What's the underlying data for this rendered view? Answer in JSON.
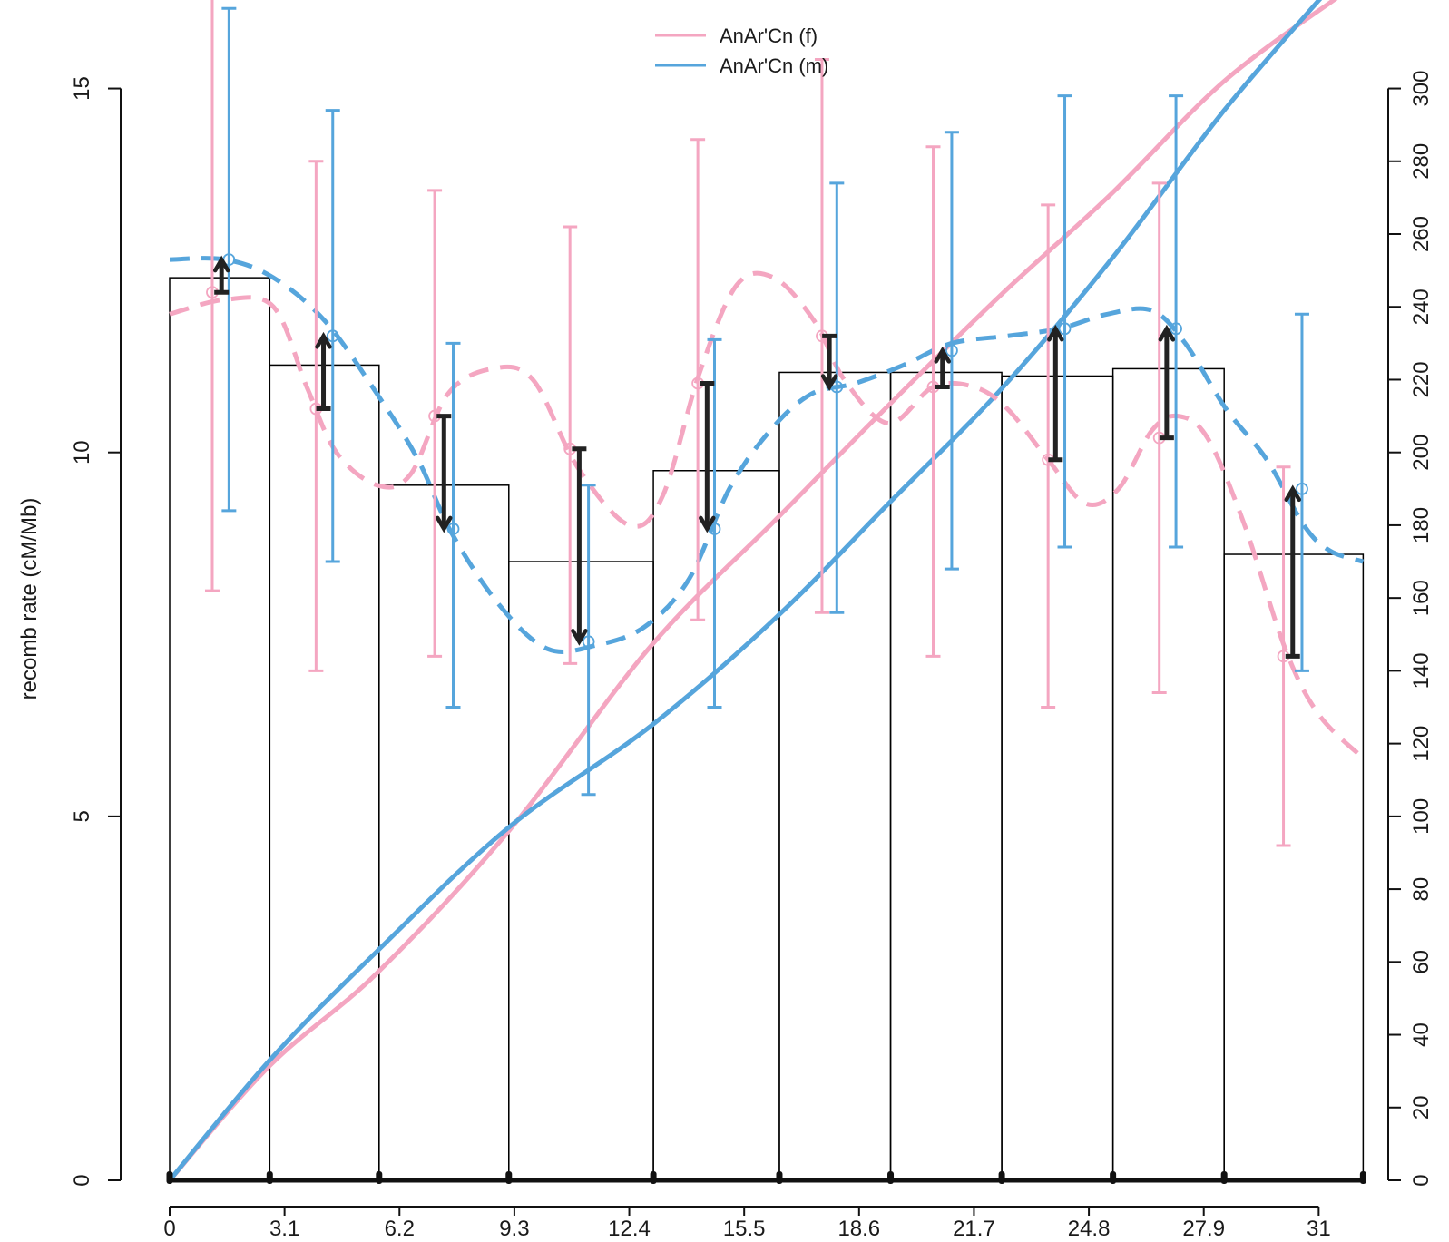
{
  "chart_data": {
    "type": "bar",
    "title": "",
    "xlabel": "",
    "ylabel": "recomb rate (cM/Mb)",
    "y2label": "",
    "xlim": [
      0,
      32.2
    ],
    "ylim": [
      0,
      15
    ],
    "y2lim": [
      0,
      300
    ],
    "x_ticks": [
      "0",
      "3.1",
      "6.2",
      "9.3",
      "12.4",
      "15.5",
      "18.6",
      "21.7",
      "24.8",
      "27.9",
      "31"
    ],
    "y_ticks": [
      "0",
      "5",
      "10",
      "15"
    ],
    "y2_ticks": [
      "0",
      "20",
      "40",
      "60",
      "80",
      "100",
      "120",
      "140",
      "160",
      "180",
      "200",
      "220",
      "240",
      "260",
      "280",
      "300"
    ],
    "colors": {
      "female": "#F4A6C1",
      "male": "#56A5DC",
      "arrow": "#222222",
      "bar_outline": "#000000"
    },
    "legend": {
      "position": "top-center",
      "entries": [
        {
          "label": "AnAr'Cn (f)",
          "color": "#F4A6C1"
        },
        {
          "label": "AnAr'Cn (m)",
          "color": "#56A5DC"
        }
      ]
    },
    "bins": [
      {
        "start": 0.0,
        "end": 2.7,
        "value": 12.4
      },
      {
        "start": 2.7,
        "end": 5.65,
        "value": 11.2
      },
      {
        "start": 5.65,
        "end": 9.15,
        "value": 9.55
      },
      {
        "start": 9.15,
        "end": 13.05,
        "value": 8.5
      },
      {
        "start": 13.05,
        "end": 16.45,
        "value": 9.75
      },
      {
        "start": 16.45,
        "end": 19.45,
        "value": 11.1
      },
      {
        "start": 19.45,
        "end": 22.45,
        "value": 11.1
      },
      {
        "start": 22.45,
        "end": 25.45,
        "value": 11.05
      },
      {
        "start": 25.45,
        "end": 28.45,
        "value": 11.15
      },
      {
        "start": 28.45,
        "end": 32.2,
        "value": 8.6
      }
    ],
    "markers_x": [
      0,
      2.7,
      5.65,
      9.15,
      13.05,
      16.45,
      19.45,
      22.45,
      25.45,
      28.45,
      32.2
    ],
    "series": [
      {
        "name": "AnAr'Cn (f)",
        "points": [
          {
            "x": 1.15,
            "y": 12.2,
            "low": 8.1,
            "high": 16.7
          },
          {
            "x": 3.95,
            "y": 10.6,
            "low": 7.0,
            "high": 14.0
          },
          {
            "x": 7.15,
            "y": 10.5,
            "low": 7.2,
            "high": 13.6
          },
          {
            "x": 10.8,
            "y": 10.05,
            "low": 7.1,
            "high": 13.1
          },
          {
            "x": 14.25,
            "y": 10.95,
            "low": 7.7,
            "high": 14.3
          },
          {
            "x": 17.6,
            "y": 11.6,
            "low": 7.8,
            "high": 15.4
          },
          {
            "x": 20.6,
            "y": 10.9,
            "low": 7.2,
            "high": 14.2
          },
          {
            "x": 23.7,
            "y": 9.9,
            "low": 6.5,
            "high": 13.4
          },
          {
            "x": 26.7,
            "y": 10.2,
            "low": 6.7,
            "high": 13.7
          },
          {
            "x": 30.05,
            "y": 7.2,
            "low": 4.6,
            "high": 9.8
          }
        ],
        "smooth": [
          [
            0,
            11.9
          ],
          [
            1.5,
            12.1
          ],
          [
            2.8,
            12.0
          ],
          [
            3.7,
            10.9
          ],
          [
            4.5,
            10.0
          ],
          [
            5.6,
            9.55
          ],
          [
            6.5,
            9.7
          ],
          [
            7.5,
            10.8
          ],
          [
            8.7,
            11.15
          ],
          [
            9.8,
            11.0
          ],
          [
            11.0,
            9.8
          ],
          [
            12.4,
            9.0
          ],
          [
            13.3,
            9.4
          ],
          [
            14.3,
            11.1
          ],
          [
            15.3,
            12.3
          ],
          [
            16.3,
            12.4
          ],
          [
            17.4,
            11.8
          ],
          [
            18.2,
            11.0
          ],
          [
            19.4,
            10.4
          ],
          [
            20.6,
            10.9
          ],
          [
            21.7,
            10.9
          ],
          [
            22.6,
            10.6
          ],
          [
            23.7,
            9.9
          ],
          [
            24.7,
            9.3
          ],
          [
            25.6,
            9.5
          ],
          [
            26.5,
            10.3
          ],
          [
            27.2,
            10.5
          ],
          [
            28.0,
            10.2
          ],
          [
            29.0,
            9.0
          ],
          [
            30.1,
            7.3
          ],
          [
            31.0,
            6.4
          ],
          [
            32.2,
            5.8
          ]
        ],
        "cumulative": [
          [
            0,
            0
          ],
          [
            2.7,
            31.5
          ],
          [
            5.6,
            57
          ],
          [
            9.15,
            96
          ],
          [
            13.0,
            147
          ],
          [
            16.4,
            182
          ],
          [
            19.4,
            213
          ],
          [
            22.4,
            243
          ],
          [
            25.4,
            271
          ],
          [
            28.45,
            302
          ],
          [
            31.5,
            325
          ]
        ]
      },
      {
        "name": "AnAr'Cn (m)",
        "points": [
          {
            "x": 1.6,
            "y": 12.65,
            "low": 9.2,
            "high": 16.1
          },
          {
            "x": 4.4,
            "y": 11.6,
            "low": 8.5,
            "high": 14.7
          },
          {
            "x": 7.65,
            "y": 8.95,
            "low": 6.5,
            "high": 11.5
          },
          {
            "x": 11.3,
            "y": 7.4,
            "low": 5.3,
            "high": 9.55
          },
          {
            "x": 14.7,
            "y": 8.95,
            "low": 6.5,
            "high": 11.55
          },
          {
            "x": 18.0,
            "y": 10.9,
            "low": 7.8,
            "high": 13.7
          },
          {
            "x": 21.1,
            "y": 11.4,
            "low": 8.4,
            "high": 14.4
          },
          {
            "x": 24.15,
            "y": 11.7,
            "low": 8.7,
            "high": 14.9
          },
          {
            "x": 27.15,
            "y": 11.7,
            "low": 8.7,
            "high": 14.9
          },
          {
            "x": 30.55,
            "y": 9.5,
            "low": 7.0,
            "high": 11.9
          }
        ],
        "smooth": [
          [
            0,
            12.65
          ],
          [
            1.5,
            12.65
          ],
          [
            2.8,
            12.4
          ],
          [
            4.2,
            11.8
          ],
          [
            5.6,
            10.8
          ],
          [
            6.7,
            9.9
          ],
          [
            7.6,
            8.9
          ],
          [
            8.9,
            7.9
          ],
          [
            10.2,
            7.3
          ],
          [
            11.5,
            7.35
          ],
          [
            12.8,
            7.6
          ],
          [
            14.0,
            8.25
          ],
          [
            15.1,
            9.5
          ],
          [
            16.2,
            10.3
          ],
          [
            17.3,
            10.8
          ],
          [
            18.5,
            10.95
          ],
          [
            19.8,
            11.2
          ],
          [
            21.1,
            11.5
          ],
          [
            22.6,
            11.6
          ],
          [
            24.0,
            11.7
          ],
          [
            25.3,
            11.9
          ],
          [
            26.5,
            11.95
          ],
          [
            27.4,
            11.5
          ],
          [
            28.5,
            10.6
          ],
          [
            29.6,
            9.9
          ],
          [
            30.6,
            9.0
          ],
          [
            31.3,
            8.65
          ],
          [
            32.2,
            8.5
          ]
        ],
        "cumulative": [
          [
            0,
            0
          ],
          [
            2.7,
            33
          ],
          [
            5.6,
            63
          ],
          [
            9.15,
            97
          ],
          [
            13.0,
            125
          ],
          [
            16.4,
            155
          ],
          [
            19.4,
            186
          ],
          [
            22.4,
            217
          ],
          [
            25.4,
            253
          ],
          [
            28.45,
            294
          ],
          [
            31.5,
            330
          ]
        ]
      }
    ],
    "arrows": [
      {
        "x": 1.4,
        "from": 12.2,
        "to": 12.65
      },
      {
        "x": 4.15,
        "from": 10.6,
        "to": 11.6
      },
      {
        "x": 7.4,
        "from": 10.5,
        "to": 8.95
      },
      {
        "x": 11.05,
        "from": 10.05,
        "to": 7.4
      },
      {
        "x": 14.5,
        "from": 10.95,
        "to": 8.95
      },
      {
        "x": 17.8,
        "from": 11.6,
        "to": 10.9
      },
      {
        "x": 20.85,
        "from": 10.9,
        "to": 11.4
      },
      {
        "x": 23.9,
        "from": 9.9,
        "to": 11.7
      },
      {
        "x": 26.9,
        "from": 10.2,
        "to": 11.7
      },
      {
        "x": 30.3,
        "from": 7.2,
        "to": 9.5
      }
    ]
  }
}
